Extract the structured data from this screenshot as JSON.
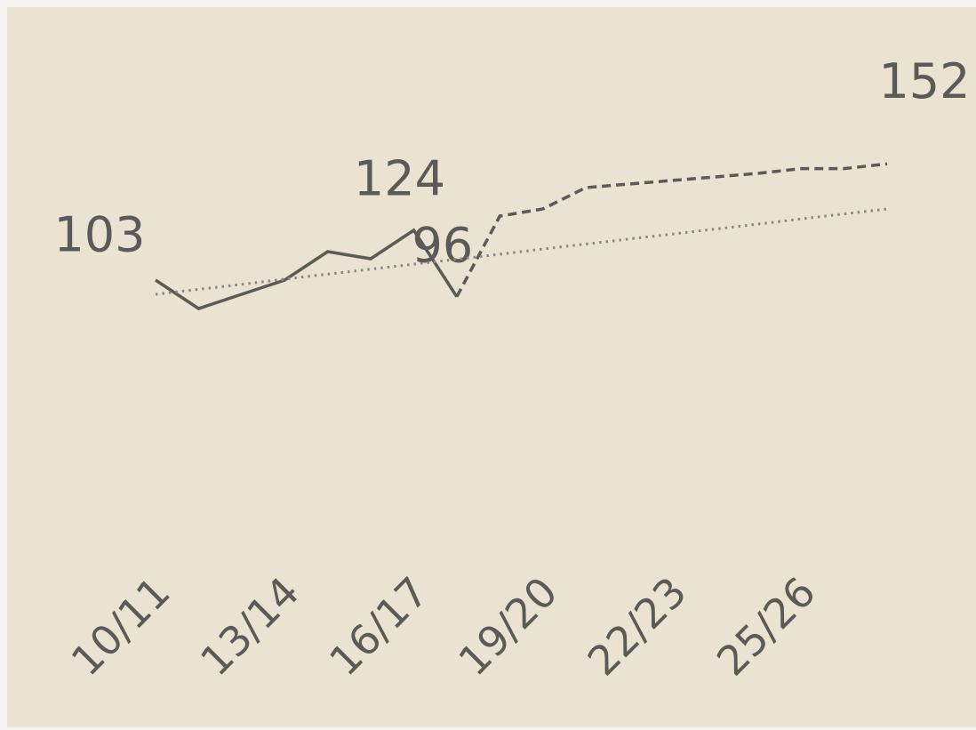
{
  "chart_data": {
    "type": "line",
    "categories": [
      "10/11",
      null,
      null,
      "13/14",
      null,
      null,
      "16/17",
      null,
      null,
      "19/20",
      null,
      null,
      "22/23",
      null,
      null,
      "25/26",
      null,
      null
    ],
    "ylim": [
      60,
      170
    ],
    "series": [
      {
        "style": "solid",
        "color": "#5b5a58",
        "values": [
          103,
          91,
          97,
          103,
          115,
          112,
          124,
          96,
          null,
          null,
          null,
          null,
          null,
          null,
          null,
          null,
          null,
          null
        ],
        "value_labels": [
          "103",
          null,
          null,
          null,
          null,
          null,
          "124",
          "96",
          null,
          null,
          null,
          null,
          null,
          null,
          null,
          null,
          null,
          null
        ]
      },
      {
        "style": "dashed",
        "color": "#5b5a58",
        "values": [
          null,
          null,
          null,
          null,
          null,
          null,
          null,
          96,
          130,
          133,
          142,
          143.5,
          145,
          146.5,
          148,
          150,
          150,
          152
        ],
        "value_labels": [
          null,
          null,
          null,
          null,
          null,
          null,
          null,
          null,
          null,
          null,
          null,
          null,
          null,
          null,
          null,
          null,
          null,
          "152"
        ]
      },
      {
        "style": "dotted",
        "color": "#8a8884",
        "values": [
          97,
          99.1,
          101.2,
          103.4,
          105.5,
          107.6,
          109.7,
          111.8,
          113.9,
          116.1,
          118.2,
          120.3,
          122.4,
          124.5,
          126.6,
          128.8,
          130.9,
          133
        ]
      }
    ]
  }
}
